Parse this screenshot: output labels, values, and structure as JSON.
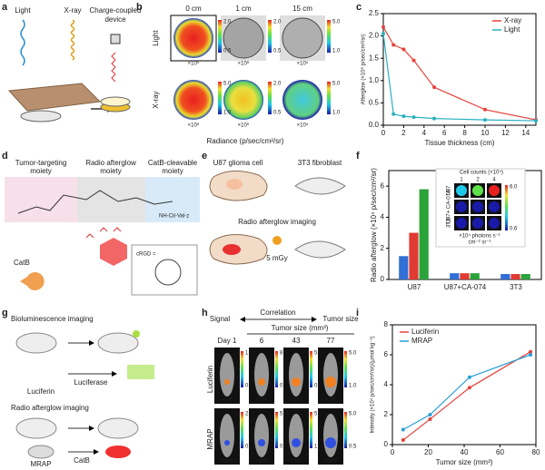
{
  "panel_labels": [
    "a",
    "b",
    "c",
    "d",
    "e",
    "f",
    "g",
    "h",
    "i"
  ],
  "a": {
    "labels": [
      "Light",
      "X-ray",
      "Charge-coupled",
      "device"
    ]
  },
  "b": {
    "columns": [
      "0 cm",
      "1 cm",
      "15 cm"
    ],
    "rows": [
      "Light",
      "X-ray"
    ],
    "colorbars": [
      [
        [
          "2.0",
          "0.5",
          "×10⁶"
        ],
        [
          "2.0",
          "0.5",
          "×10⁶"
        ],
        [
          "5.0",
          "1.0",
          "×10⁵"
        ]
      ],
      [
        [
          "5.0",
          "1.0",
          "×10⁶"
        ],
        [
          "2.0",
          "0.5",
          "×10⁶"
        ],
        [
          "5.0",
          "1.0",
          "×10⁵"
        ]
      ]
    ],
    "xlabel": "Radiance (p/sec/cm²/sr)"
  },
  "d": {
    "moieties": [
      [
        "Tumor-targeting",
        "moiety"
      ],
      [
        "Radio afterglow",
        "moiety"
      ],
      [
        "CatB-cleavable",
        "moiety"
      ]
    ],
    "enzyme": "CatB",
    "crgd": "cRGD =",
    "peptide": "NH-Cit-Val-z"
  },
  "e": {
    "labels": [
      "U87 glioma cell",
      "3T3 fibroblast",
      "Radio afterglow imaging",
      "5 mGy"
    ]
  },
  "g": {
    "labels": [
      "Bioluminescence imaging",
      "Luciferin",
      "Luciferase",
      "Radio afterglow imaging",
      "MRAP",
      "CatB"
    ]
  },
  "h": {
    "signal": "Signal",
    "correlation": "Correlation",
    "tumor": "Tumor size",
    "axis": "Tumor size (mm³)",
    "days": [
      "Day 1",
      "6",
      "43",
      "77"
    ],
    "rows": [
      "Luciferin",
      "MRAP"
    ],
    "colorbars": [
      [
        [
          "1.0",
          "0.1",
          "×10⁶"
        ],
        [
          "8.0",
          "0.5",
          "×10⁶"
        ],
        [
          "5.0",
          "0.4",
          "×10⁷"
        ],
        [
          "5.0",
          "1.0",
          "×10⁷"
        ]
      ],
      [
        [
          "2.0",
          "0.1",
          "×10⁵"
        ],
        [
          "5.0",
          "0.1",
          "×10⁵"
        ],
        [
          "5.0",
          "1.0",
          "×10⁶"
        ],
        [
          "5.0",
          "0.5",
          "×10⁶"
        ]
      ]
    ]
  },
  "f_inset": {
    "title": "Cell counts (×10⁴)",
    "rows": [
      "U87",
      "U87+ CA-074",
      "3T3"
    ],
    "cbar": [
      "6.0",
      "0.6"
    ],
    "unit": [
      "×10⁴ photons s⁻¹",
      "cm⁻² sr⁻¹"
    ]
  },
  "chart_data": [
    {
      "type": "line",
      "xlabel": "Tissue thickness (cm)",
      "ylabel": "Afterglow (×10⁶ p/sec/cm²/sr)",
      "x": [
        0,
        1,
        2,
        3,
        5,
        10,
        15
      ],
      "series": [
        {
          "name": "X-ray",
          "color": "#e8413a",
          "values": [
            2.2,
            1.8,
            1.7,
            1.45,
            0.85,
            0.35,
            0.12
          ]
        },
        {
          "name": "Light",
          "color": "#2ab0c0",
          "values": [
            2.05,
            0.25,
            0.2,
            0.18,
            0.15,
            0.12,
            0.1
          ]
        }
      ],
      "xlim": [
        0,
        15
      ],
      "xticks": [
        0,
        2,
        4,
        6,
        8,
        10,
        12,
        14
      ],
      "ylim": [
        0,
        2.5
      ],
      "yticks": [
        {
          "value": 0,
          "label": "0.0"
        },
        0.5,
        {
          "value": 1,
          "label": "1.0"
        },
        1.5,
        {
          "value": 2,
          "label": "2.0"
        },
        2.5
      ],
      "legend": "upper right"
    },
    {
      "type": "bar",
      "ylabel": "Radio afterglow (×10⁴ p/sec/cm²/sr)",
      "categories": [
        "U87",
        "U87+CA-074",
        "3T3"
      ],
      "series": [
        {
          "name": "1",
          "color": "#2f6fd6",
          "values": [
            1.5,
            0.4,
            0.35
          ]
        },
        {
          "name": "2",
          "color": "#e03a32",
          "values": [
            3.0,
            0.4,
            0.35
          ]
        },
        {
          "name": "4",
          "color": "#2aa33b",
          "values": [
            5.8,
            0.4,
            0.35
          ]
        }
      ],
      "ylim": [
        0,
        7
      ],
      "yticks": [
        0,
        2,
        4,
        6
      ]
    },
    {
      "type": "line",
      "markers_only_fit": true,
      "xlabel": "Tumor size (mm³)",
      "ylabel": "Intensity (×10⁴ p/sec/cm²/sr)/(μmol kg⁻¹)",
      "x": [
        6,
        21,
        43,
        77
      ],
      "series": [
        {
          "name": "Luciferin",
          "color": "#e8413a",
          "values": [
            0.3,
            1.7,
            3.8,
            6.2
          ]
        },
        {
          "name": "MRAP",
          "color": "#2a9fd6",
          "values": [
            1.0,
            2.0,
            4.5,
            6.0
          ]
        }
      ],
      "xlim": [
        0,
        80
      ],
      "xticks": [
        0,
        20,
        40,
        60,
        80
      ],
      "ylim": [
        0,
        8
      ],
      "yticks": [
        0,
        2,
        4,
        6,
        8
      ],
      "legend": "upper left"
    }
  ]
}
